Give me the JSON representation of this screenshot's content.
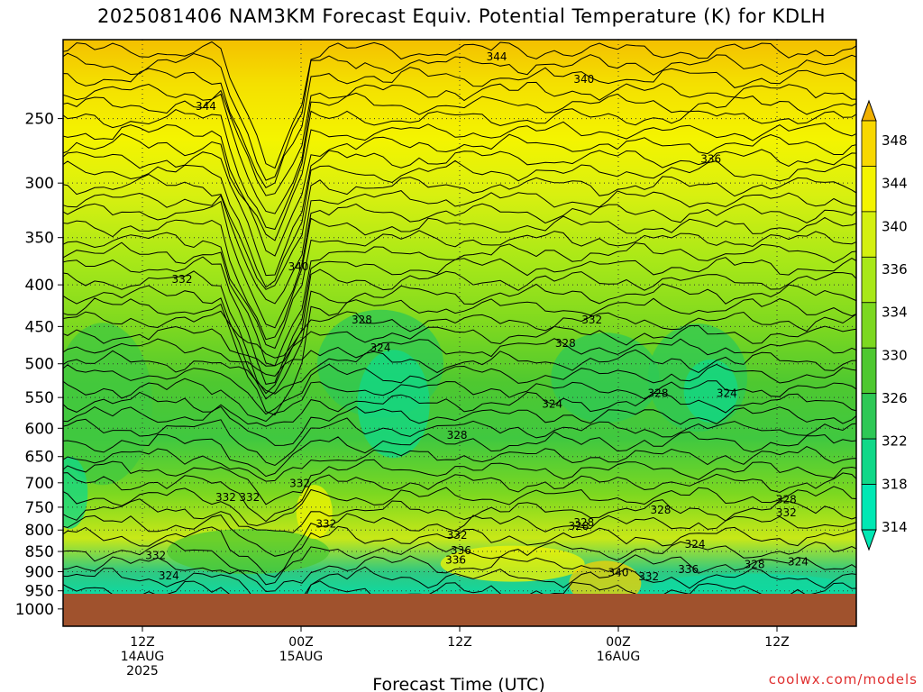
{
  "title": "2025081406 NAM3KM Forecast Equiv. Potential Temperature (K) for KDLH",
  "credit": "coolwx.com/models",
  "colors": {
    "ground": "#a0522d",
    "contour": "#000000",
    "grid": "#333333",
    "credit": "#e03030"
  },
  "chart_data": {
    "type": "heatmap",
    "title": "2025081406 NAM3KM Forecast Equiv. Potential Temperature (K) for KDLH",
    "xlabel": "Forecast Time (UTC)",
    "ylabel": "",
    "y_scale": "log-pressure",
    "y_reversed": true,
    "y_ticks": [
      250,
      300,
      350,
      400,
      450,
      500,
      550,
      600,
      650,
      700,
      750,
      800,
      850,
      900,
      950,
      1000
    ],
    "x_ticks": [
      {
        "lines": [
          "12Z",
          "14AUG",
          "2025"
        ]
      },
      {
        "lines": [
          "00Z",
          "15AUG"
        ]
      },
      {
        "lines": [
          "12Z"
        ]
      },
      {
        "lines": [
          "00Z",
          "16AUG"
        ]
      },
      {
        "lines": [
          "12Z"
        ]
      }
    ],
    "x_range_hours": [
      6,
      66
    ],
    "x_tick_hours": [
      12,
      24,
      36,
      48,
      60
    ],
    "grid": true,
    "colorbar": {
      "levels": [
        314,
        318,
        322,
        326,
        330,
        334,
        336,
        340,
        344,
        348
      ],
      "colors": [
        "#00e8b4",
        "#10d888",
        "#2ec856",
        "#4ec830",
        "#7cd820",
        "#a8e818",
        "#d4f010",
        "#f4f400",
        "#f8d800",
        "#f0b000"
      ],
      "extend": "both"
    },
    "contour_labels": [
      {
        "text": "344",
        "hour": 38.8,
        "p": 212
      },
      {
        "text": "340",
        "hour": 45.4,
        "p": 226
      },
      {
        "text": "344",
        "hour": 16.8,
        "p": 244
      },
      {
        "text": "336",
        "hour": 55.0,
        "p": 283
      },
      {
        "text": "340",
        "hour": 23.8,
        "p": 384
      },
      {
        "text": "332",
        "hour": 15.0,
        "p": 398
      },
      {
        "text": "328",
        "hour": 28.6,
        "p": 446
      },
      {
        "text": "332",
        "hour": 46.0,
        "p": 446
      },
      {
        "text": "324",
        "hour": 30.0,
        "p": 483
      },
      {
        "text": "328",
        "hour": 44.0,
        "p": 477
      },
      {
        "text": "328",
        "hour": 51.0,
        "p": 549
      },
      {
        "text": "324",
        "hour": 56.2,
        "p": 549
      },
      {
        "text": "324",
        "hour": 43.0,
        "p": 566
      },
      {
        "text": "328",
        "hour": 35.8,
        "p": 618
      },
      {
        "text": "332",
        "hour": 23.9,
        "p": 708
      },
      {
        "text": "332",
        "hour": 18.3,
        "p": 737
      },
      {
        "text": "332",
        "hour": 20.1,
        "p": 737
      },
      {
        "text": "332",
        "hour": 25.9,
        "p": 794
      },
      {
        "text": "328",
        "hour": 51.2,
        "p": 764
      },
      {
        "text": "328",
        "hour": 60.7,
        "p": 742
      },
      {
        "text": "332",
        "hour": 60.7,
        "p": 770
      },
      {
        "text": "328",
        "hour": 45.0,
        "p": 800
      },
      {
        "text": "328",
        "hour": 45.4,
        "p": 791
      },
      {
        "text": "332",
        "hour": 35.8,
        "p": 820
      },
      {
        "text": "336",
        "hour": 36.1,
        "p": 856
      },
      {
        "text": "336",
        "hour": 35.7,
        "p": 880
      },
      {
        "text": "324",
        "hour": 53.8,
        "p": 841
      },
      {
        "text": "332",
        "hour": 13.0,
        "p": 868
      },
      {
        "text": "324",
        "hour": 14.0,
        "p": 920
      },
      {
        "text": "340",
        "hour": 48.0,
        "p": 912
      },
      {
        "text": "332",
        "hour": 50.3,
        "p": 922
      },
      {
        "text": "336",
        "hour": 53.3,
        "p": 904
      },
      {
        "text": "328",
        "hour": 58.3,
        "p": 891
      },
      {
        "text": "324",
        "hour": 61.6,
        "p": 884
      }
    ]
  }
}
